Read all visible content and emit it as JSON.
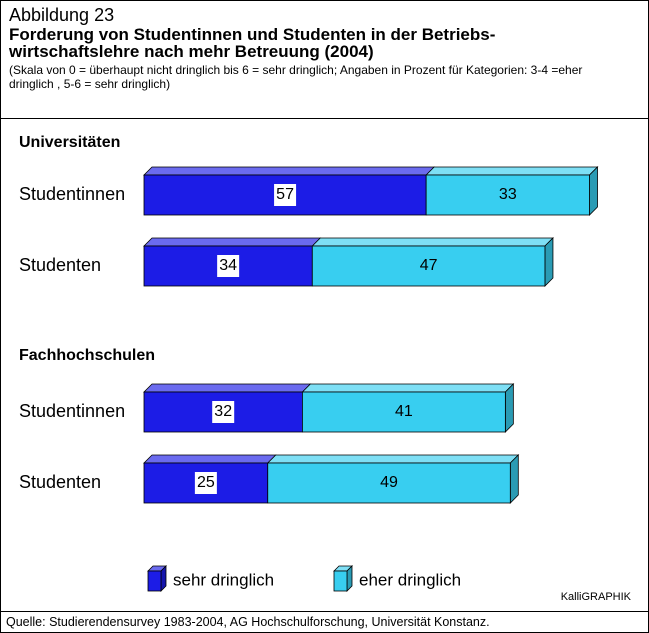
{
  "header": {
    "figure": "Abbildung 23",
    "title": "Forderung von Studentinnen und Studenten in der Betriebs-wirtschaftslehre nach mehr Betreuung (2004)",
    "subtitle": "(Skala von 0 = überhaupt nicht dringlich bis 6 = sehr dringlich;  Angaben in Prozent für Kategorien: 3-4 =eher dringlich , 5-6  = sehr dringlich)"
  },
  "chart_data": {
    "type": "bar",
    "stacked": true,
    "orientation": "horizontal",
    "group_titles": [
      "Universitäten",
      "Fachhochschulen"
    ],
    "categories": [
      "Studentinnen",
      "Studenten",
      "Studentinnen",
      "Studenten"
    ],
    "series": [
      {
        "name": "sehr dringlich",
        "color": "#1c1ce6",
        "values": [
          57,
          34,
          32,
          25
        ]
      },
      {
        "name": "eher dringlich",
        "color": "#38cef0",
        "values": [
          33,
          47,
          41,
          49
        ]
      }
    ]
  },
  "credit": "KalliGRAPHIK",
  "source": "Quelle: Studierendensurvey 1983-2004, AG Hochschulforschung, Universität Konstanz."
}
